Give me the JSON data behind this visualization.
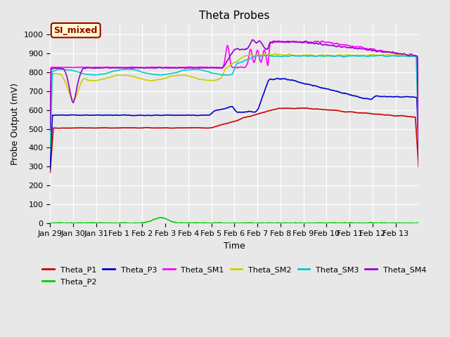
{
  "title": "Theta Probes",
  "xlabel": "Time",
  "ylabel": "Probe Output (mV)",
  "ylim": [
    0,
    1050
  ],
  "yticks": [
    0,
    100,
    200,
    300,
    400,
    500,
    600,
    700,
    800,
    900,
    1000
  ],
  "bg_color": "#e8e8e8",
  "plot_bg": "#e8e8e8",
  "line_colors": {
    "Theta_P1": "#cc0000",
    "Theta_P2": "#00cc00",
    "Theta_P3": "#0000cc",
    "Theta_SM1": "#ff00ff",
    "Theta_SM2": "#cccc00",
    "Theta_SM3": "#00cccc",
    "Theta_SM4": "#9900cc"
  },
  "annotation_text": "SI_mixed",
  "annotation_color": "#990000",
  "annotation_bg": "#ffffcc",
  "x_tick_positions": [
    0,
    1,
    2,
    3,
    4,
    5,
    6,
    7,
    8,
    9,
    10,
    11,
    12,
    13,
    14,
    15
  ],
  "x_tick_labels": [
    "Jan 29",
    "Jan 30",
    "Jan 31",
    "Feb 1",
    "Feb 2",
    "Feb 3",
    "Feb 4",
    "Feb 5",
    "Feb 6",
    "Feb 7",
    "Feb 8",
    "Feb 9",
    "Feb 10",
    "Feb 11",
    "Feb 12",
    "Feb 13"
  ]
}
